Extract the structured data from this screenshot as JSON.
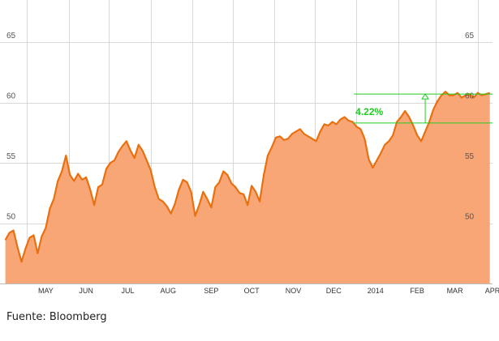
{
  "chart_data": {
    "type": "area",
    "x_labels": [
      "MAY",
      "JUN",
      "JUL",
      "AUG",
      "SEP",
      "OCT",
      "NOV",
      "DEC",
      "2014",
      "FEB",
      "MAR",
      "APR"
    ],
    "y_ticks": [
      "50",
      "55",
      "60",
      "65"
    ],
    "ylim": [
      45.0,
      68.5
    ],
    "grid": true,
    "colors": {
      "line": "#e8700f",
      "fill": "#f9a677",
      "grid": "#d8d8d8",
      "annotation": "#22cc22"
    },
    "annotation": {
      "label": "4.22%",
      "low": 58.3,
      "high": 60.7,
      "start_date": "2013-12-30",
      "end_date": "2014-04-11",
      "arrow_date": "2014-02-21"
    },
    "series": [
      {
        "x": [
          "2013-04-15",
          "2013-04-18",
          "2013-04-21",
          "2013-04-24",
          "2013-04-27",
          "2013-04-30",
          "2013-05-03",
          "2013-05-06",
          "2013-05-09",
          "2013-05-12",
          "2013-05-15",
          "2013-05-18",
          "2013-05-21",
          "2013-05-24",
          "2013-05-27",
          "2013-05-30",
          "2013-06-02",
          "2013-06-05",
          "2013-06-08",
          "2013-06-11",
          "2013-06-14",
          "2013-06-17",
          "2013-06-20",
          "2013-06-23",
          "2013-06-26",
          "2013-06-29",
          "2013-07-02",
          "2013-07-05",
          "2013-07-08",
          "2013-07-11",
          "2013-07-14",
          "2013-07-17",
          "2013-07-20",
          "2013-07-23",
          "2013-07-26",
          "2013-07-29",
          "2013-08-01",
          "2013-08-04",
          "2013-08-07",
          "2013-08-10",
          "2013-08-13",
          "2013-08-16",
          "2013-08-19",
          "2013-08-22",
          "2013-08-25",
          "2013-08-28",
          "2013-08-31",
          "2013-09-03",
          "2013-09-06",
          "2013-09-09",
          "2013-09-12",
          "2013-09-15",
          "2013-09-18",
          "2013-09-21",
          "2013-09-24",
          "2013-09-27",
          "2013-09-30",
          "2013-10-03",
          "2013-10-06",
          "2013-10-09",
          "2013-10-12",
          "2013-10-15",
          "2013-10-18",
          "2013-10-21",
          "2013-10-24",
          "2013-10-27",
          "2013-10-30",
          "2013-11-02",
          "2013-11-05",
          "2013-11-08",
          "2013-11-11",
          "2013-11-14",
          "2013-11-17",
          "2013-11-20",
          "2013-11-23",
          "2013-11-26",
          "2013-11-29",
          "2013-12-02",
          "2013-12-05",
          "2013-12-08",
          "2013-12-11",
          "2013-12-14",
          "2013-12-17",
          "2013-12-20",
          "2013-12-23",
          "2013-12-26",
          "2013-12-29",
          "2014-01-01",
          "2014-01-04",
          "2014-01-07",
          "2014-01-10",
          "2014-01-13",
          "2014-01-16",
          "2014-01-19",
          "2014-01-22",
          "2014-01-25",
          "2014-01-28",
          "2014-01-31",
          "2014-02-03",
          "2014-02-06",
          "2014-02-09",
          "2014-02-12",
          "2014-02-15",
          "2014-02-18",
          "2014-02-21",
          "2014-02-24",
          "2014-02-27",
          "2014-03-02",
          "2014-03-05",
          "2014-03-08",
          "2014-03-11",
          "2014-03-14",
          "2014-03-17",
          "2014-03-20",
          "2014-03-23",
          "2014-03-26",
          "2014-03-29",
          "2014-04-01",
          "2014-04-04",
          "2014-04-07",
          "2014-04-10"
        ],
        "y": [
          48.6,
          49.2,
          49.4,
          48.0,
          46.8,
          47.9,
          48.8,
          49.0,
          47.5,
          48.9,
          49.6,
          51.2,
          52.0,
          53.5,
          54.3,
          55.6,
          54.0,
          53.5,
          54.1,
          53.6,
          53.8,
          52.8,
          51.5,
          53.0,
          53.2,
          54.5,
          55.0,
          55.2,
          55.9,
          56.4,
          56.8,
          56.0,
          55.4,
          56.5,
          56.0,
          55.2,
          54.4,
          53.0,
          52.0,
          51.8,
          51.4,
          50.8,
          51.6,
          52.8,
          53.6,
          53.4,
          52.6,
          50.6,
          51.5,
          52.6,
          52.0,
          51.3,
          53.0,
          53.4,
          54.3,
          54.0,
          53.3,
          53.0,
          52.5,
          52.4,
          51.5,
          53.1,
          52.6,
          51.8,
          54.0,
          55.6,
          56.3,
          57.1,
          57.2,
          56.9,
          57.0,
          57.4,
          57.6,
          57.8,
          57.4,
          57.2,
          57.0,
          56.8,
          57.6,
          58.2,
          58.1,
          58.4,
          58.2,
          58.6,
          58.8,
          58.5,
          58.4,
          58.0,
          57.8,
          57.0,
          55.3,
          54.6,
          55.2,
          55.8,
          56.5,
          56.8,
          57.3,
          58.4,
          58.8,
          59.3,
          58.8,
          58.1,
          57.3,
          56.8,
          57.6,
          58.4,
          59.4,
          60.1,
          60.6,
          60.9,
          60.6,
          60.6,
          60.8,
          60.4,
          60.6,
          60.7,
          60.4,
          60.8,
          60.6,
          60.7,
          60.8
        ],
        "values": [
          48.6,
          49.2,
          49.4,
          48.0,
          46.8,
          47.9,
          48.8,
          49.0,
          47.5,
          48.9,
          49.6,
          51.2,
          52.0,
          53.5,
          54.3,
          55.6,
          54.0,
          53.5,
          54.1,
          53.6,
          53.8,
          52.8,
          51.5,
          53.0,
          53.2,
          54.5,
          55.0,
          55.2,
          55.9,
          56.4,
          56.8,
          56.0,
          55.4,
          56.5,
          56.0,
          55.2,
          54.4,
          53.0,
          52.0,
          51.8,
          51.4,
          50.8,
          51.6,
          52.8,
          53.6,
          53.4,
          52.6,
          50.6,
          51.5,
          52.6,
          52.0,
          51.3,
          53.0,
          53.4,
          54.3,
          54.0,
          53.3,
          53.0,
          52.5,
          52.4,
          51.5,
          53.1,
          52.6,
          51.8,
          54.0,
          55.6,
          56.3,
          57.1,
          57.2,
          56.9,
          57.0,
          57.4,
          57.6,
          57.8,
          57.4,
          57.2,
          57.0,
          56.8,
          57.6,
          58.2,
          58.1,
          58.4,
          58.2,
          58.6,
          58.8,
          58.5,
          58.4,
          58.0,
          57.8,
          57.0,
          55.3,
          54.6,
          55.2,
          55.8,
          56.5,
          56.8,
          57.3,
          58.4,
          58.8,
          59.3,
          58.8,
          58.1,
          57.3,
          56.8,
          57.6,
          58.4,
          59.4,
          60.1,
          60.6,
          60.9,
          60.6,
          60.6,
          60.8,
          60.4,
          60.6,
          60.7,
          60.4,
          60.8,
          60.6,
          60.7,
          60.8
        ]
      }
    ]
  },
  "footer": {
    "source": "Fuente: Bloomberg"
  }
}
